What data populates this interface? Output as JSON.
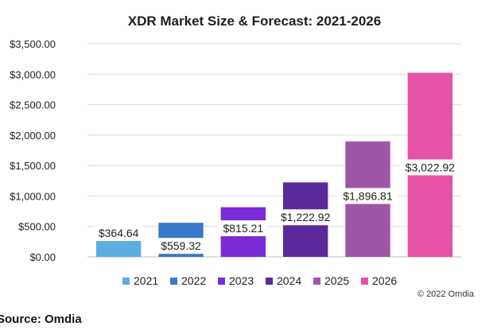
{
  "chart_data": {
    "type": "bar",
    "title": "XDR Market Size & Forecast: 2021-2026",
    "categories": [
      "2021",
      "2022",
      "2023",
      "2024",
      "2025",
      "2026"
    ],
    "values": [
      364.64,
      559.32,
      815.21,
      1222.92,
      1896.81,
      3022.92
    ],
    "data_labels": [
      "$364.64",
      "$559.32",
      "$815.21",
      "$1,222.92",
      "$1,896.81",
      "$3,022.92"
    ],
    "colors": [
      "#5aaee0",
      "#3a78c8",
      "#7a2ad6",
      "#5b2a9a",
      "#a056a8",
      "#e552a6"
    ],
    "ylim": [
      0,
      3500
    ],
    "yticks": [
      0,
      500,
      1000,
      1500,
      2000,
      2500,
      3000,
      3500
    ],
    "ytick_labels": [
      "$0.00",
      "$500.00",
      "$1,000.00",
      "$1,500.00",
      "$2,000.00",
      "$2,500.00",
      "$3,000.00",
      "$3,500.00"
    ],
    "grid": true,
    "legend": "bottom",
    "legend_entries": [
      "2021",
      "2022",
      "2023",
      "2024",
      "2025",
      "2026"
    ]
  },
  "copyright": "© 2022 Omdia",
  "source": "Source: Omdia"
}
